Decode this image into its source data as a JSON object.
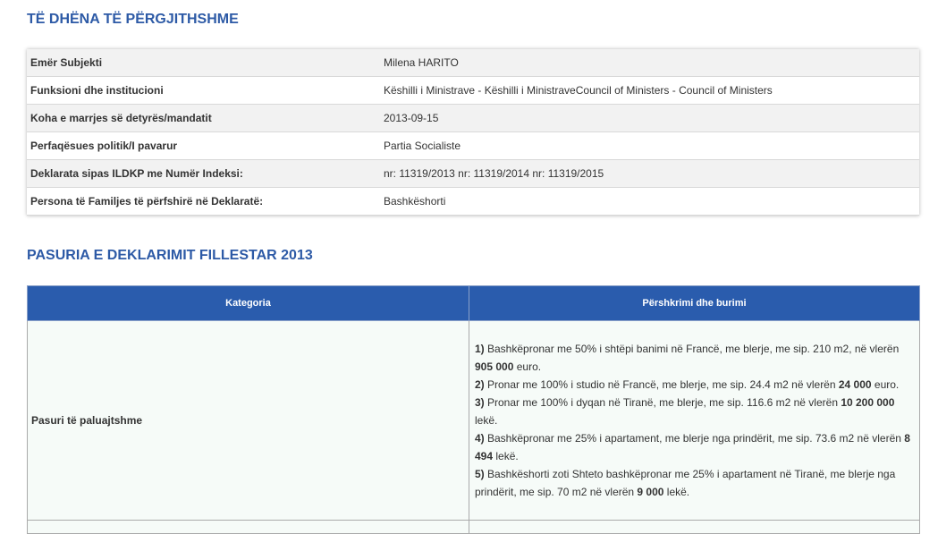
{
  "general": {
    "title": "TË DHËNA TË PËRGJITHSHME",
    "rows": [
      {
        "label": "Emër Subjekti",
        "value": "Milena HARITO"
      },
      {
        "label": "Funksioni dhe institucioni",
        "value": "Këshilli i Ministrave - Këshilli i MinistraveCouncil of Ministers - Council of Ministers"
      },
      {
        "label": "Koha e marrjes së detyrës/mandatit",
        "value": "2013-09-15"
      },
      {
        "label": "Perfaqësues politik/I pavarur",
        "value": "Partia Socialiste"
      },
      {
        "label": "Deklarata sipas ILDKP me Numër Indeksi:",
        "value": "nr: 11319/2013 nr: 11319/2014 nr: 11319/2015"
      },
      {
        "label": "Persona të Familjes të përfshirë në Deklaratë:",
        "value": "Bashkëshorti"
      }
    ]
  },
  "assets": {
    "title": "PASURIA E DEKLARIMIT FILLESTAR 2013",
    "headers": {
      "category": "Kategoria",
      "description": "Përshkrimi dhe burimi"
    },
    "rows": [
      {
        "category": "Pasuri të paluajtshme",
        "items": [
          [
            {
              "t": "1)",
              "b": true
            },
            {
              "t": " Bashkëpronar me 50% i shtëpi banimi në Francë, me blerje, me sip. 210 m2, në vlerën "
            },
            {
              "t": "905 000",
              "b": true
            },
            {
              "t": " euro."
            }
          ],
          [
            {
              "t": "2)",
              "b": true
            },
            {
              "t": " Pronar me 100% i studio në Francë, me blerje, me sip. 24.4 m2 në vlerën "
            },
            {
              "t": "24 000",
              "b": true
            },
            {
              "t": " euro."
            }
          ],
          [
            {
              "t": "3)",
              "b": true
            },
            {
              "t": " Pronar me 100% i dyqan në Tiranë, me blerje, me sip. 116.6 m2 në vlerën "
            },
            {
              "t": "10 200 000",
              "b": true
            },
            {
              "t": " lekë."
            }
          ],
          [
            {
              "t": "4)",
              "b": true
            },
            {
              "t": " Bashkëpronar me 25% i apartament, me blerje nga prindërit, me sip. 73.6 m2 në vlerën "
            },
            {
              "t": "8 494",
              "b": true
            },
            {
              "t": " lekë."
            }
          ],
          [
            {
              "t": "5)",
              "b": true
            },
            {
              "t": " Bashkëshorti zoti Shteto bashkëpronar me 25% i apartament në Tiranë, me blerje nga prindërit, me sip. 70 m2 në vlerën "
            },
            {
              "t": "9 000",
              "b": true
            },
            {
              "t": " lekë."
            }
          ]
        ]
      }
    ]
  }
}
